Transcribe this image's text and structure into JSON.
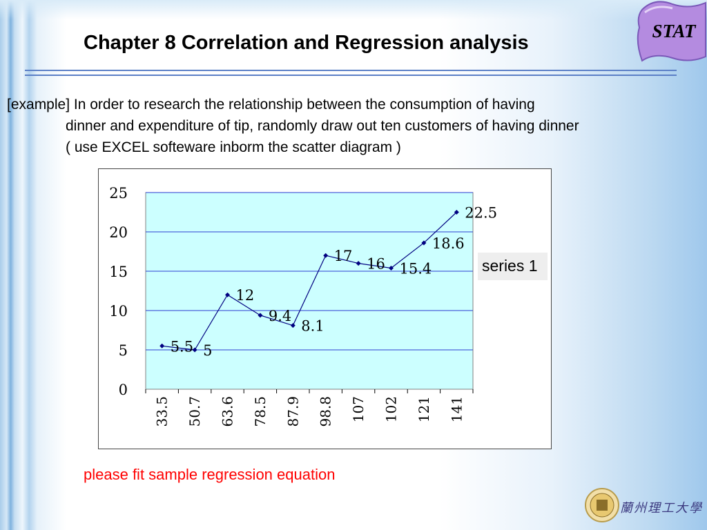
{
  "slide": {
    "title": "Chapter 8 Correlation and Regression analysis",
    "badge": "STAT",
    "paragraph": {
      "line1": "[example] In order to research the relationship between the consumption of having",
      "line2": "dinner and expenditure of tip, randomly draw out ten customers of having  dinner",
      "line3": "( use EXCEL softeware inborm the scatter diagram )"
    },
    "footer_text": "please fit sample regression equation",
    "footer_color": "#ff0000",
    "university_name": "蘭州理工大學"
  },
  "colors": {
    "plot_bg": "#ccffff",
    "series_line": "#000080",
    "gridline": "#2d3cd0",
    "rule": "#5b7fc6",
    "badge": "#b48be0"
  },
  "chart_data": {
    "type": "line",
    "categories": [
      "33.5",
      "50.7",
      "63.6",
      "78.5",
      "87.9",
      "98.8",
      "107",
      "102",
      "121",
      "141"
    ],
    "series": [
      {
        "name": "series 1",
        "values": [
          5.5,
          5,
          12,
          9.4,
          8.1,
          17,
          16,
          15.4,
          18.6,
          22.5
        ],
        "labels": [
          "5.5",
          "5",
          "12",
          "9.4",
          "8.1",
          "17",
          "16",
          "15.4",
          "18.6",
          "22.5"
        ]
      }
    ],
    "ylim": [
      0,
      25
    ],
    "yticks": [
      "0",
      "5",
      "10",
      "15",
      "20",
      "25"
    ],
    "grid": true,
    "legend": "right",
    "title": "",
    "xlabel": "",
    "ylabel": ""
  }
}
